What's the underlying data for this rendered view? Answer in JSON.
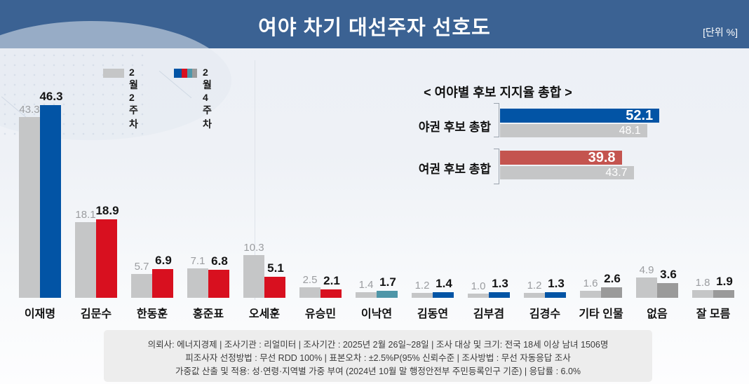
{
  "header": {
    "title": "여야 차기 대선주자 선호도",
    "unit": "[단위 %]"
  },
  "legend": {
    "week2_label": "2월 2주차",
    "week4_label": "2월 4주차"
  },
  "colors": {
    "header_bg": "#3B6293",
    "gray_bar": "#C5C6C7",
    "dark_gray_bar": "#9A9A9A",
    "blue": "#0254A5",
    "red": "#D8101F",
    "teal": "#4E96A8",
    "inset_red": "#C4544F",
    "gray_value_text": "#9B9DA0"
  },
  "chart_data": [
    {
      "type": "bar",
      "title": "여야 차기 대선주자 선호도",
      "unit": "%",
      "categories": [
        "이재명",
        "김문수",
        "한동훈",
        "홍준표",
        "오세훈",
        "유승민",
        "이낙연",
        "김동연",
        "김부겸",
        "김경수",
        "기타 인물",
        "없음",
        "잘 모름"
      ],
      "series": [
        {
          "name": "2월 2주차",
          "values": [
            43.3,
            18.1,
            5.7,
            7.1,
            10.3,
            2.5,
            1.4,
            1.2,
            1.0,
            1.2,
            1.6,
            4.9,
            1.8
          ]
        },
        {
          "name": "2월 4주차",
          "values": [
            46.3,
            18.9,
            6.9,
            6.8,
            5.1,
            2.1,
            1.7,
            1.4,
            1.3,
            1.3,
            2.6,
            3.6,
            1.9
          ]
        }
      ],
      "week4_bar_colors": [
        "#0254A5",
        "#D8101F",
        "#D8101F",
        "#D8101F",
        "#D8101F",
        "#D8101F",
        "#4E96A8",
        "#0254A5",
        "#0254A5",
        "#0254A5",
        "#9A9A9A",
        "#9A9A9A",
        "#9A9A9A"
      ],
      "ylim": [
        0,
        50
      ],
      "grid": false,
      "legend_position": "top-left"
    },
    {
      "type": "bar",
      "orientation": "horizontal",
      "title": "< 여야별 후보 지지율 총합 >",
      "categories": [
        "야권 후보 총합",
        "여권 후보 총합"
      ],
      "series": [
        {
          "name": "2월 4주차",
          "values": [
            52.1,
            39.8
          ],
          "colors": [
            "#0254A5",
            "#C4544F"
          ]
        },
        {
          "name": "2월 2주차",
          "values": [
            48.1,
            43.7
          ],
          "colors": [
            "#C5C6C7",
            "#C5C6C7"
          ]
        }
      ],
      "xlim": [
        0,
        60
      ],
      "grid": false
    }
  ],
  "footer": {
    "lines": [
      "의뢰사: 에너지경제 | 조사기관 : 리얼미터  |  조사기간 : 2025년 2월 26일~28일 | 조사 대상 및 크기: 전국 18세 이상 남녀 1506명",
      "피조사자 선정방법 : 무선 RDD 100% | 표본오차 : ±2.5%P(95% 신뢰수준 | 조사방법 : 무선 자동응답 조사",
      "가중값 산출 및 적용: 성·연령·지역별 가중 부여 (2024년 10월 말 행정안전부 주민등록인구 기준) | 응답률 : 6.0%"
    ]
  }
}
